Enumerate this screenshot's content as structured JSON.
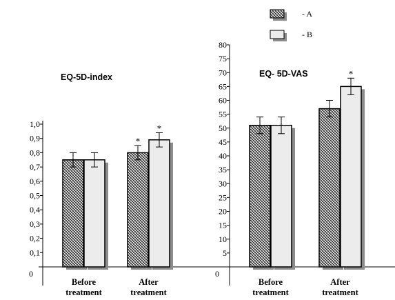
{
  "chart_data": [
    {
      "type": "bar",
      "title": "EQ-5D-index",
      "categories": [
        "Before\ntreatment",
        "After\ntreatment"
      ],
      "series": [
        {
          "name": "A",
          "values": [
            0.75,
            0.8
          ],
          "errors": [
            0.05,
            0.05
          ],
          "markers": [
            "",
            "*"
          ]
        },
        {
          "name": "B",
          "values": [
            0.75,
            0.89
          ],
          "errors": [
            0.05,
            0.05
          ],
          "markers": [
            "",
            "*"
          ]
        }
      ],
      "ylim": [
        0,
        1.0
      ],
      "yticks": [
        "0",
        "0,1",
        "0,2",
        "0,3",
        "0,4",
        "0,5",
        "0,6",
        "0,7",
        "0,8",
        "0,9",
        "1,0"
      ]
    },
    {
      "type": "bar",
      "title": "EQ- 5D-VAS",
      "categories": [
        "Before\ntreatment",
        "After\ntreatment"
      ],
      "series": [
        {
          "name": "A",
          "values": [
            51,
            57
          ],
          "errors": [
            3,
            3
          ],
          "markers": [
            "",
            ""
          ]
        },
        {
          "name": "B",
          "values": [
            51,
            65
          ],
          "errors": [
            3,
            3
          ],
          "markers": [
            "",
            "*"
          ]
        }
      ],
      "ylim": [
        0,
        80
      ],
      "yticks": [
        "0",
        "5",
        "10",
        "15",
        "20",
        "25",
        "30",
        "35",
        "40",
        "45",
        "50",
        "55",
        "60",
        "65",
        "70",
        "75",
        "80"
      ]
    }
  ],
  "legend": [
    {
      "label": "- A",
      "pattern": "hatched"
    },
    {
      "label": "- B",
      "pattern": "light"
    }
  ],
  "colors": {
    "bar_light": "#ececec",
    "shadow": "#8c8c8c",
    "hatch_bg": "#ffffff",
    "hatch_line": "#3a3a3a"
  }
}
